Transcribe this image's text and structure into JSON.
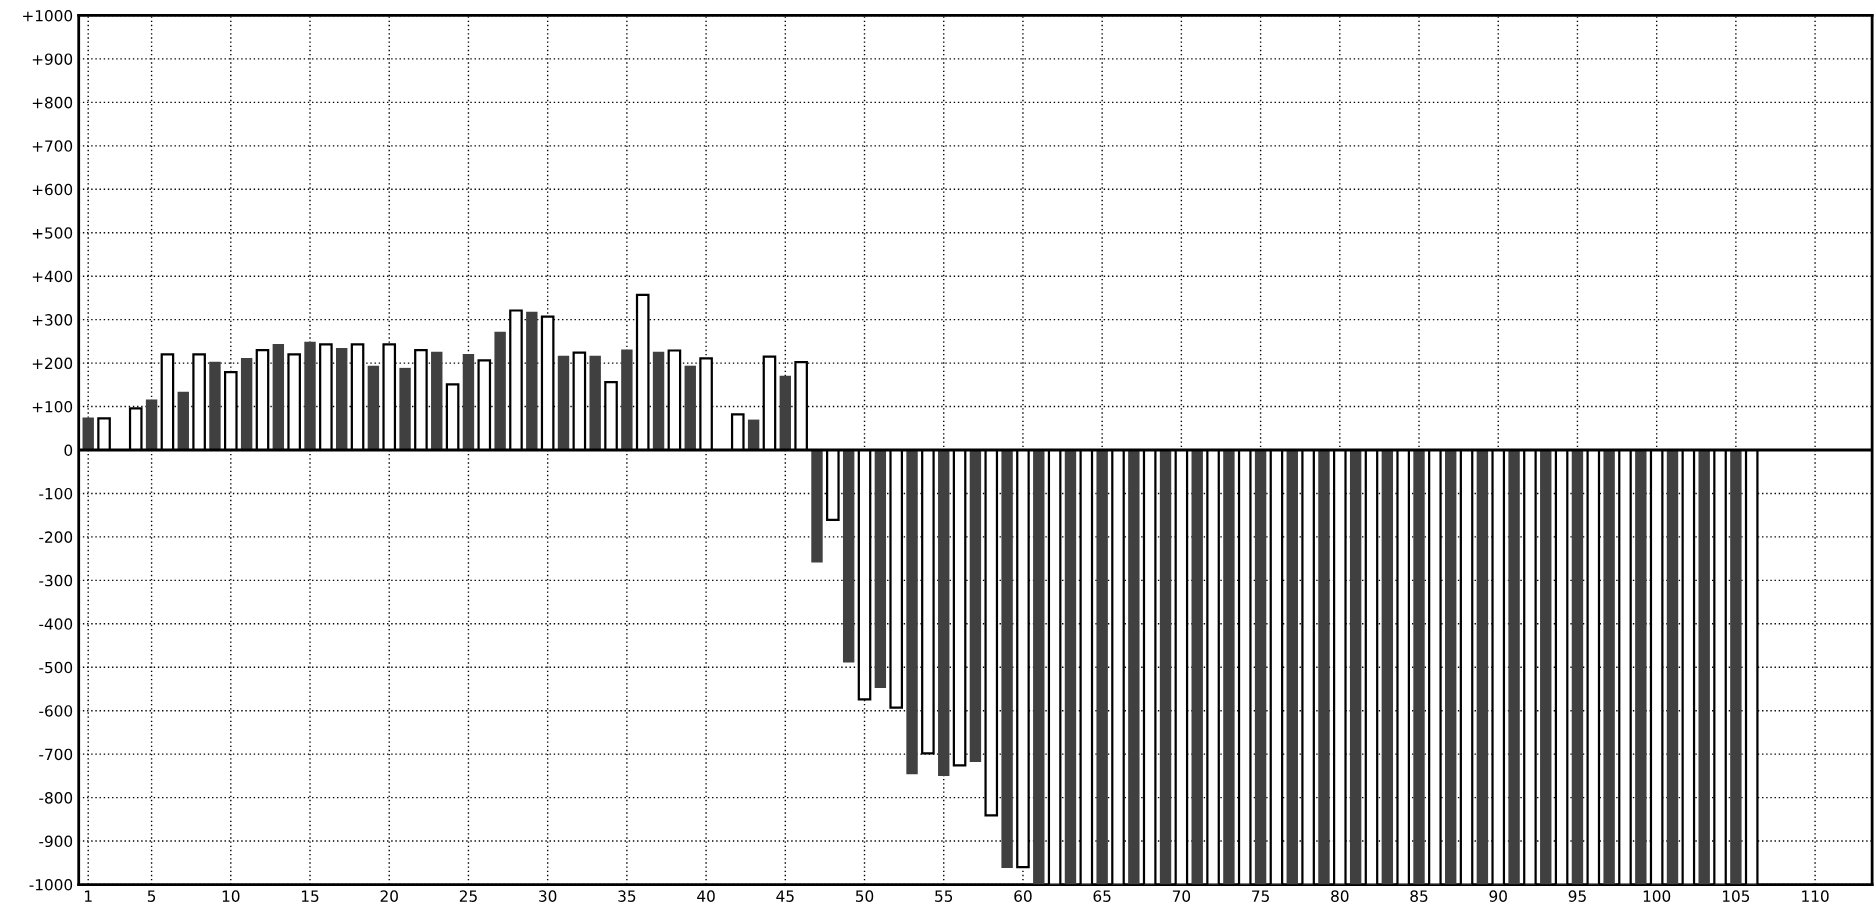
{
  "chart_data": {
    "type": "bar",
    "x": [
      1,
      2,
      3,
      4,
      5,
      6,
      7,
      8,
      9,
      10,
      11,
      12,
      13,
      14,
      15,
      16,
      17,
      18,
      19,
      20,
      21,
      22,
      23,
      24,
      25,
      26,
      27,
      28,
      29,
      30,
      31,
      32,
      33,
      34,
      35,
      36,
      37,
      38,
      39,
      40,
      41,
      42,
      43,
      44,
      45,
      46,
      47,
      48,
      49,
      50,
      51,
      52,
      53,
      54,
      55,
      56,
      57,
      58,
      59,
      60,
      61,
      62,
      63,
      64,
      65,
      66,
      67,
      68,
      69,
      70,
      71,
      72,
      73,
      74,
      75,
      76,
      77,
      78,
      79,
      80,
      81,
      82,
      83,
      84,
      85,
      86,
      87,
      88,
      89,
      90,
      91,
      92,
      93,
      94,
      95,
      96,
      97,
      98,
      99,
      100,
      101,
      102,
      103,
      104,
      105,
      106
    ],
    "values": [
      75,
      73,
      null,
      96,
      116,
      220,
      134,
      220,
      203,
      179,
      212,
      230,
      244,
      220,
      249,
      243,
      235,
      243,
      194,
      243,
      189,
      230,
      226,
      151,
      221,
      206,
      272,
      321,
      318,
      307,
      217,
      224,
      217,
      156,
      231,
      357,
      226,
      229,
      194,
      211,
      null,
      82,
      70,
      215,
      171,
      202,
      -259,
      -161,
      -489,
      -574,
      -548,
      -593,
      -746,
      -698,
      -750,
      -726,
      -718,
      -841,
      -962,
      -960,
      -1000,
      -1000,
      -1000,
      -1000,
      -1000,
      -1000,
      -1000,
      -1000,
      -1000,
      -1000,
      -1000,
      -1000,
      -1000,
      -1000,
      -1000,
      -1000,
      -1000,
      -1000,
      -1000,
      -1000,
      -1000,
      -1000,
      -1000,
      -1000,
      -1000,
      -1000,
      -1000,
      -1000,
      -1000,
      -1000,
      -1000,
      -1000,
      -1000,
      -1000,
      -1000,
      -1000,
      -1000,
      -1000,
      -1000,
      -1000,
      -1000,
      -1000,
      -1000,
      -1000,
      -1000,
      -1000
    ],
    "colors": [
      "#404040",
      "#ffffff",
      "#404040",
      "#ffffff",
      "#404040",
      "#ffffff",
      "#404040",
      "#ffffff",
      "#404040",
      "#ffffff",
      "#404040",
      "#ffffff",
      "#404040",
      "#ffffff",
      "#404040",
      "#ffffff",
      "#404040",
      "#ffffff",
      "#404040",
      "#ffffff",
      "#404040",
      "#ffffff",
      "#404040",
      "#ffffff",
      "#404040",
      "#ffffff",
      "#404040",
      "#ffffff",
      "#404040",
      "#ffffff",
      "#404040",
      "#ffffff",
      "#404040",
      "#ffffff",
      "#404040",
      "#ffffff",
      "#404040",
      "#ffffff",
      "#404040",
      "#ffffff",
      "#404040",
      "#ffffff",
      "#404040",
      "#ffffff",
      "#404040",
      "#ffffff",
      "#404040",
      "#ffffff",
      "#404040",
      "#ffffff",
      "#404040",
      "#ffffff",
      "#404040",
      "#ffffff",
      "#404040",
      "#ffffff",
      "#404040",
      "#ffffff",
      "#404040",
      "#ffffff",
      "#404040",
      "#ffffff",
      "#404040",
      "#ffffff",
      "#404040",
      "#ffffff",
      "#404040",
      "#ffffff",
      "#404040",
      "#ffffff",
      "#404040",
      "#ffffff",
      "#404040",
      "#ffffff",
      "#404040",
      "#ffffff",
      "#404040",
      "#ffffff",
      "#404040",
      "#ffffff",
      "#404040",
      "#ffffff",
      "#404040",
      "#ffffff",
      "#404040",
      "#ffffff",
      "#404040",
      "#ffffff",
      "#404040",
      "#ffffff",
      "#404040",
      "#ffffff",
      "#404040",
      "#ffffff",
      "#404040",
      "#ffffff",
      "#404040",
      "#ffffff",
      "#404040",
      "#ffffff",
      "#404040",
      "#ffffff",
      "#404040",
      "#ffffff",
      "#404040",
      "#ffffff"
    ],
    "xlim": [
      0.4,
      113.6
    ],
    "xticks": [
      1,
      5,
      10,
      15,
      20,
      25,
      30,
      35,
      40,
      45,
      50,
      55,
      60,
      65,
      70,
      75,
      80,
      85,
      90,
      95,
      100,
      105,
      110
    ],
    "ylim": [
      -1000,
      1000
    ],
    "yticks": [
      {
        "value": -1000,
        "label": "-1000"
      },
      {
        "value": -900,
        "label": "-900"
      },
      {
        "value": -800,
        "label": "-800"
      },
      {
        "value": -700,
        "label": "-700"
      },
      {
        "value": -600,
        "label": "-600"
      },
      {
        "value": -500,
        "label": "-500"
      },
      {
        "value": -400,
        "label": "-400"
      },
      {
        "value": -300,
        "label": "-300"
      },
      {
        "value": -200,
        "label": "-200"
      },
      {
        "value": -100,
        "label": "-100"
      },
      0,
      {
        "value": 100,
        "label": "+100"
      },
      {
        "value": 200,
        "label": "+200"
      },
      {
        "value": 300,
        "label": "+300"
      },
      {
        "value": 400,
        "label": "+400"
      },
      {
        "value": 500,
        "label": "+500"
      },
      {
        "value": 600,
        "label": "+600"
      },
      {
        "value": 700,
        "label": "+700"
      },
      {
        "value": 800,
        "label": "+800"
      },
      {
        "value": 900,
        "label": "+900"
      },
      {
        "value": 1000,
        "label": "+1000"
      }
    ],
    "grid": true
  }
}
